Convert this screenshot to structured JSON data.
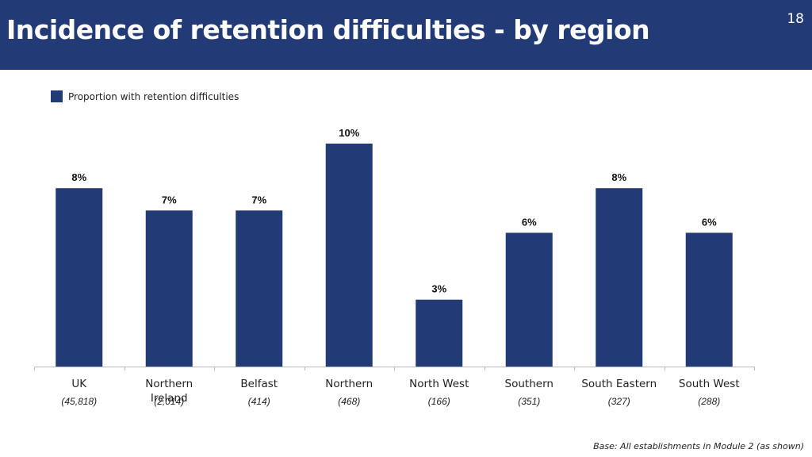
{
  "page": {
    "title": "Incidence of retention difficulties - by region",
    "page_number": "18",
    "footer": "Base: All establishments in Module 2 (as shown)"
  },
  "colors": {
    "header": "#223a75",
    "bar": "#223a75"
  },
  "chart_data": {
    "type": "bar",
    "categories": [
      "UK",
      "Northern Ireland",
      "Belfast",
      "Northern",
      "North West",
      "Southern",
      "South Eastern",
      "South West"
    ],
    "bases": [
      "(45,818)",
      "(2,014)",
      "(414)",
      "(468)",
      "(166)",
      "(351)",
      "(327)",
      "(288)"
    ],
    "series": [
      {
        "name": "Proportion with retention difficulties",
        "values": [
          8,
          7,
          7,
          10,
          3,
          6,
          8,
          6
        ]
      }
    ],
    "value_suffix": "%",
    "ylim": [
      0,
      10
    ],
    "grid": false,
    "legend_position": "top-left"
  }
}
